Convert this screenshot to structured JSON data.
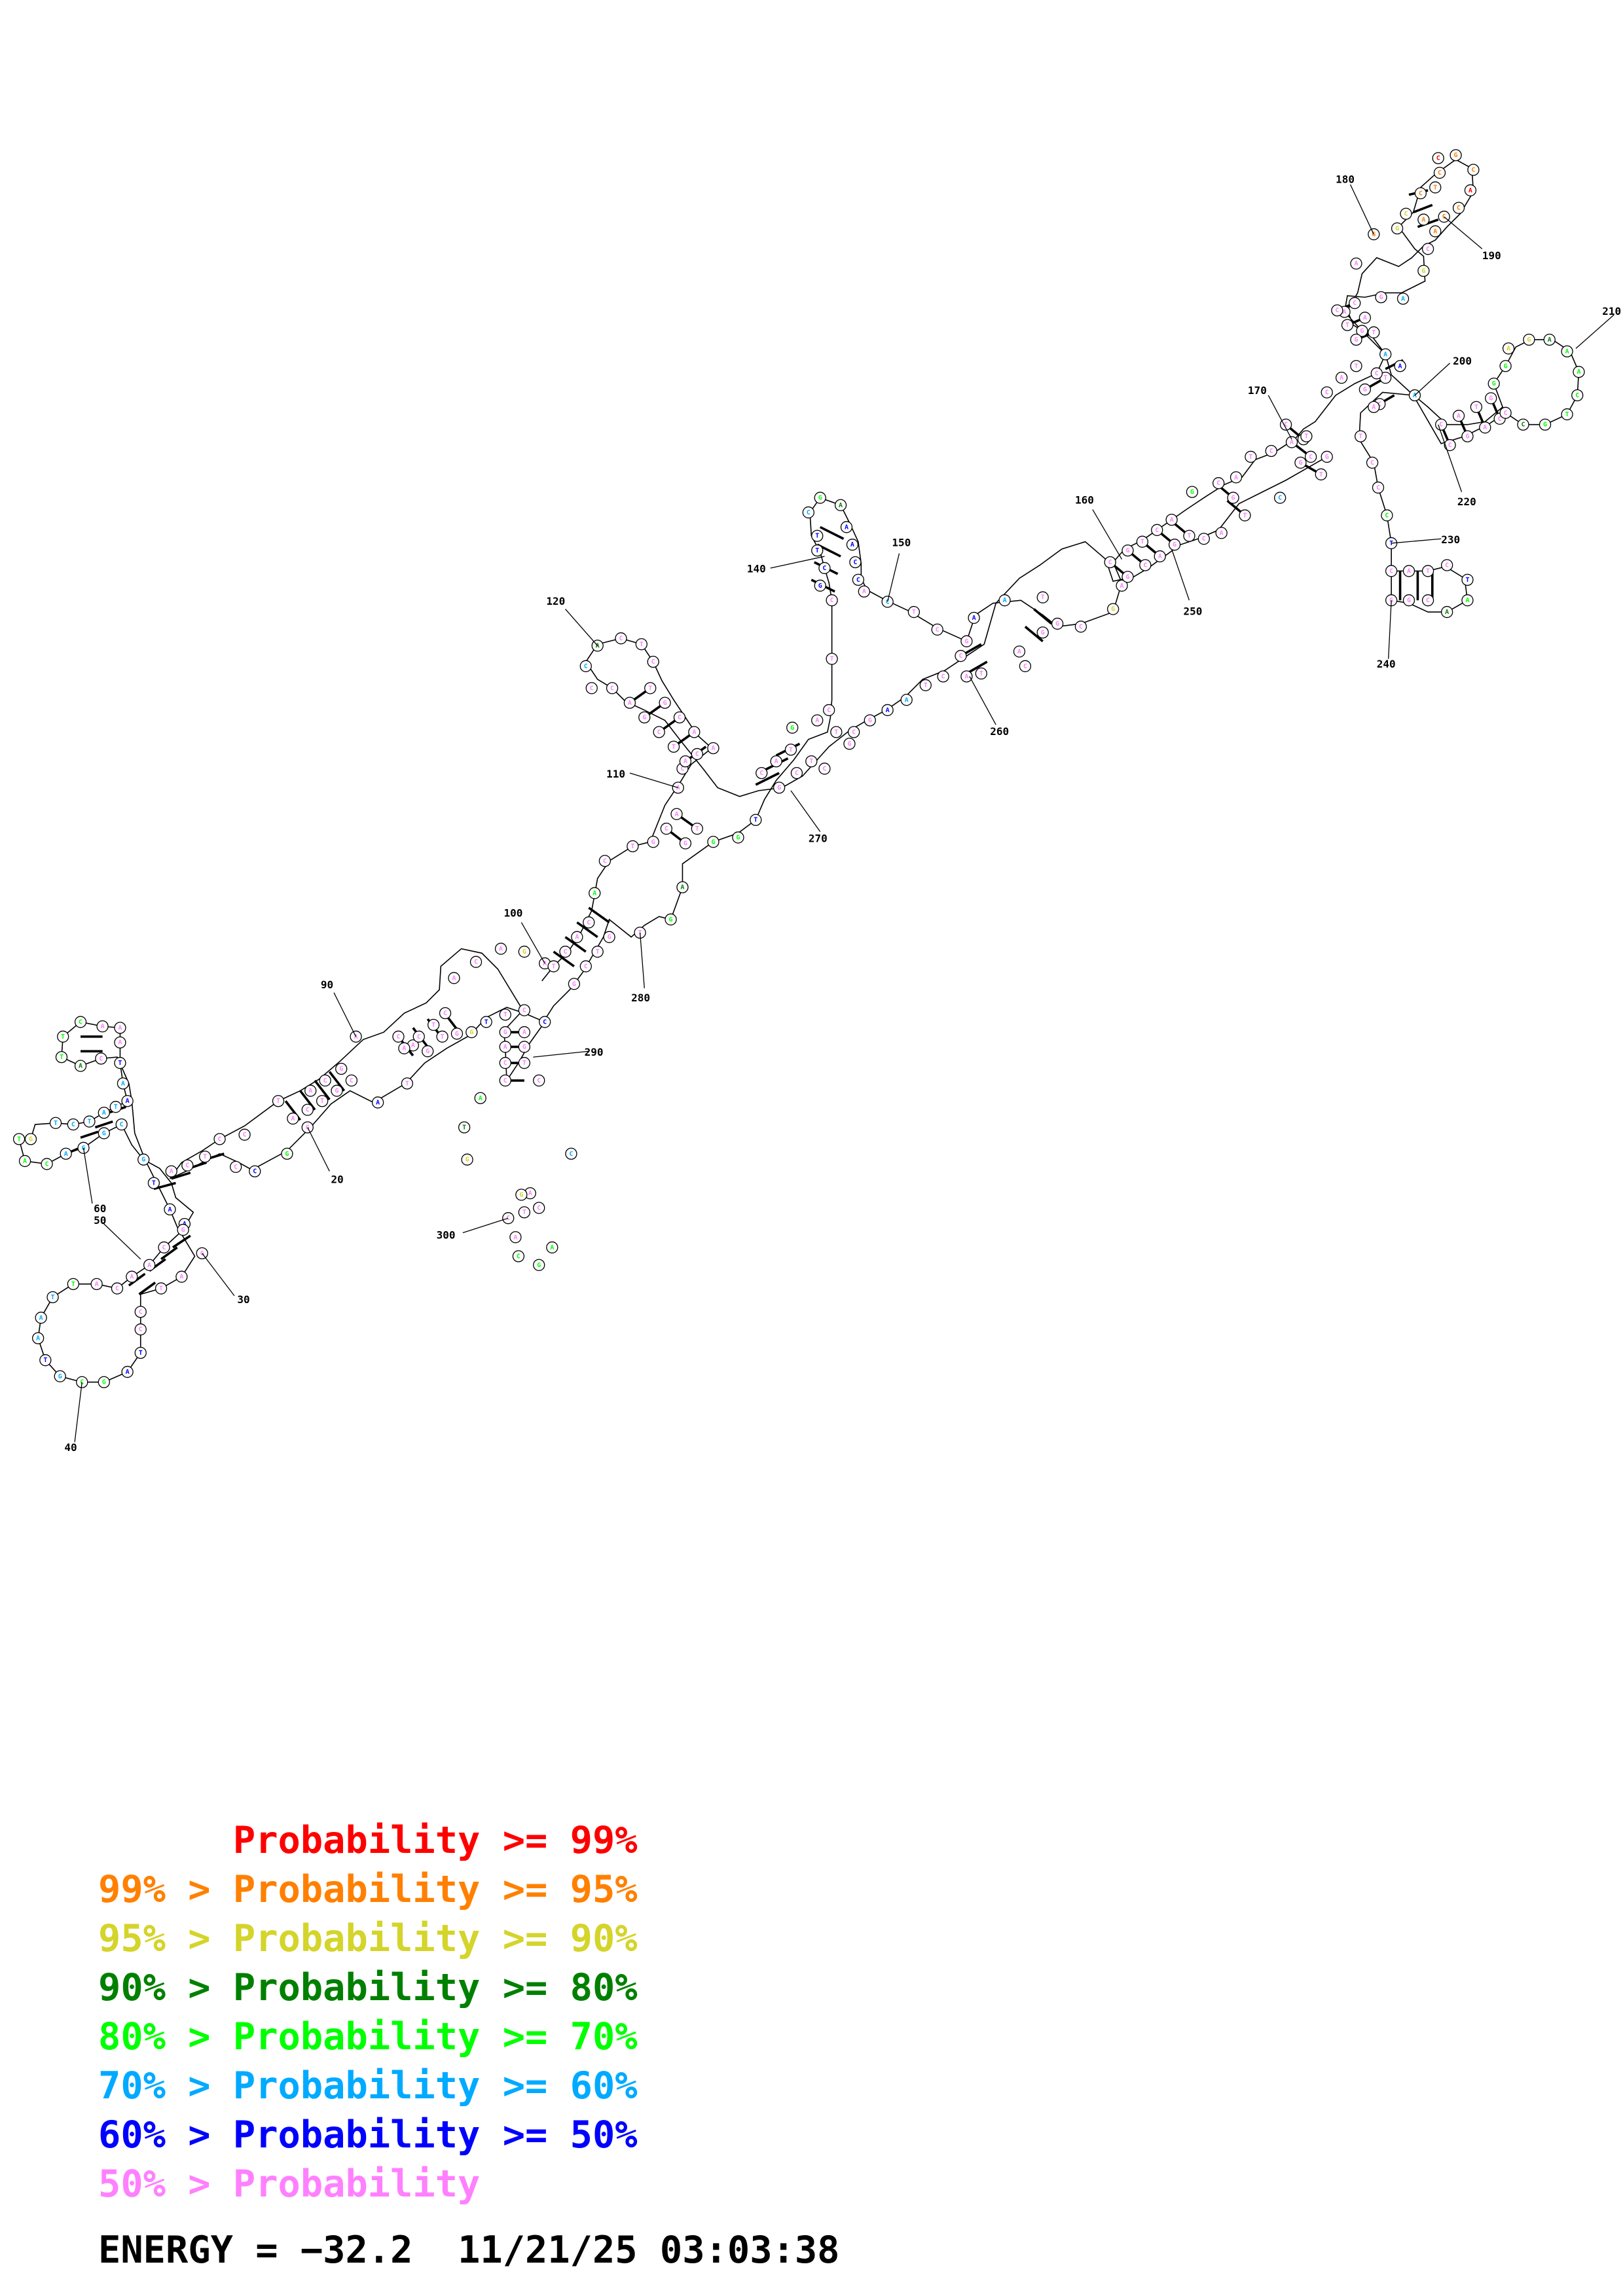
{
  "legend": [
    {
      "lhs": "",
      "mid": "Probability",
      "rhs": ">= 99%",
      "color": "#ff0000"
    },
    {
      "lhs": "99% >",
      "mid": "Probability",
      "rhs": ">= 95%",
      "color": "#ff8000"
    },
    {
      "lhs": "95% >",
      "mid": "Probability",
      "rhs": ">= 90%",
      "color": "#d4d42a"
    },
    {
      "lhs": "90% >",
      "mid": "Probability",
      "rhs": ">= 80%",
      "color": "#008000"
    },
    {
      "lhs": "80% >",
      "mid": "Probability",
      "rhs": ">= 70%",
      "color": "#00ff00"
    },
    {
      "lhs": "70% >",
      "mid": "Probability",
      "rhs": ">= 60%",
      "color": "#00aaff"
    },
    {
      "lhs": "60% >",
      "mid": "Probability",
      "rhs": ">= 50%",
      "color": "#0000ff"
    },
    {
      "lhs": "50% >",
      "mid": "Probability",
      "rhs": "",
      "color": "#ff80ff"
    }
  ],
  "footer": {
    "energy": "ENERGY = −32.2",
    "timestamp": "11/21/25 03:03:38"
  },
  "index_labels": [
    "20",
    "30",
    "40",
    "50",
    "60",
    "90",
    "100",
    "110",
    "120",
    "140",
    "150",
    "160",
    "170",
    "180",
    "190",
    "200",
    "210",
    "220",
    "230",
    "240",
    "250",
    "260",
    "270",
    "280",
    "290",
    "300"
  ],
  "colors": {
    "red": "#ff0000",
    "orange": "#ff8000",
    "yellow": "#d4d42a",
    "darkgreen": "#008000",
    "green": "#00ff00",
    "cyan": "#00aaff",
    "blue": "#0000ff",
    "pink": "#ff80ff"
  }
}
